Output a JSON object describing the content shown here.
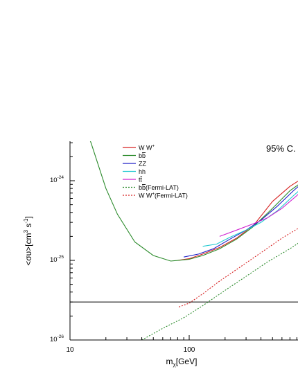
{
  "chart_data": {
    "type": "line",
    "xscale": "log",
    "yscale": "log",
    "xlim": [
      10,
      1000
    ],
    "ylim": [
      1e-26,
      3e-24
    ],
    "xlabel": {
      "main": "m",
      "sub": "χ",
      "tail": "[GeV]"
    },
    "ylabel": {
      "a": "<συ>[cm",
      "b": "3",
      "c": " s",
      "d": "-1",
      "e": "]"
    },
    "annotation": "95% C.",
    "x_ticks": [
      {
        "value": 10,
        "label": "10"
      },
      {
        "value": 100,
        "label": "100"
      }
    ],
    "y_ticks": [
      {
        "value": 1e-26,
        "base": "10",
        "exp": "-26"
      },
      {
        "value": 1e-25,
        "base": "10",
        "exp": "-25"
      },
      {
        "value": 1e-24,
        "base": "10",
        "exp": "-24"
      }
    ],
    "reference_line": {
      "y": 3e-26,
      "color": "#000000"
    },
    "legend_position": "top-left",
    "series": [
      {
        "label": "W W",
        "sup": "+",
        "color": "#d62020",
        "dash": "solid",
        "points": [
          [
            80,
            1e-25
          ],
          [
            100,
            1.05e-25
          ],
          [
            130,
            1.2e-25
          ],
          [
            180,
            1.45e-25
          ],
          [
            250,
            1.9e-25
          ],
          [
            350,
            2.8e-25
          ],
          [
            500,
            5.5e-25
          ],
          [
            700,
            8.5e-25
          ],
          [
            1000,
            1.2e-24
          ]
        ]
      },
      {
        "label": "b",
        "barred": "b",
        "color": "#2a8a2a",
        "dash": "solid",
        "points": [
          [
            13,
            5e-24
          ],
          [
            15,
            3e-24
          ],
          [
            20,
            8e-25
          ],
          [
            25,
            3.8e-25
          ],
          [
            35,
            1.7e-25
          ],
          [
            50,
            1.15e-25
          ],
          [
            70,
            9.8e-26
          ],
          [
            100,
            1.03e-25
          ],
          [
            130,
            1.15e-25
          ],
          [
            180,
            1.4e-25
          ],
          [
            250,
            1.85e-25
          ],
          [
            350,
            2.7e-25
          ],
          [
            500,
            4.5e-25
          ],
          [
            700,
            7.5e-25
          ],
          [
            1000,
            1.1e-24
          ]
        ]
      },
      {
        "label": "ZZ",
        "color": "#2020c8",
        "dash": "solid",
        "points": [
          [
            90,
            1.1e-25
          ],
          [
            120,
            1.2e-25
          ],
          [
            160,
            1.4e-25
          ],
          [
            220,
            1.85e-25
          ],
          [
            300,
            2.4e-25
          ],
          [
            400,
            3.2e-25
          ],
          [
            550,
            4.8e-25
          ],
          [
            750,
            7.5e-25
          ],
          [
            1000,
            1.1e-24
          ]
        ]
      },
      {
        "label": "hh",
        "color": "#20c8d0",
        "dash": "solid",
        "points": [
          [
            130,
            1.5e-25
          ],
          [
            170,
            1.6e-25
          ],
          [
            220,
            1.95e-25
          ],
          [
            300,
            2.4e-25
          ],
          [
            400,
            3e-25
          ],
          [
            550,
            4.2e-25
          ],
          [
            750,
            6.5e-25
          ],
          [
            1000,
            9.5e-25
          ]
        ]
      },
      {
        "label": "t",
        "barred": "t",
        "color": "#d020d0",
        "dash": "solid",
        "points": [
          [
            180,
            2e-25
          ],
          [
            250,
            2.4e-25
          ],
          [
            350,
            2.9e-25
          ],
          [
            450,
            3.4e-25
          ],
          [
            600,
            4.5e-25
          ],
          [
            800,
            6.5e-25
          ],
          [
            1000,
            9e-25
          ]
        ]
      },
      {
        "label": "b",
        "barred": "b",
        "suffix": "(Fermi-LAT)",
        "color": "#2a8a2a",
        "dash": "dotted",
        "points": [
          [
            40,
            1e-26
          ],
          [
            60,
            1.4e-26
          ],
          [
            90,
            1.9e-26
          ],
          [
            130,
            2.7e-26
          ],
          [
            200,
            4.2e-26
          ],
          [
            300,
            6.3e-26
          ],
          [
            450,
            9.5e-26
          ],
          [
            700,
            1.4e-25
          ],
          [
            1000,
            2e-25
          ]
        ]
      },
      {
        "label": "W W",
        "sup": "+",
        "suffix": "(Fermi-LAT)",
        "color": "#d62020",
        "dash": "dotted",
        "points": [
          [
            82,
            2.6e-26
          ],
          [
            100,
            2.9e-26
          ],
          [
            130,
            3.8e-26
          ],
          [
            180,
            5.5e-26
          ],
          [
            260,
            8e-26
          ],
          [
            400,
            1.25e-25
          ],
          [
            600,
            1.9e-25
          ],
          [
            850,
            2.6e-25
          ],
          [
            1000,
            3e-25
          ]
        ]
      }
    ]
  }
}
